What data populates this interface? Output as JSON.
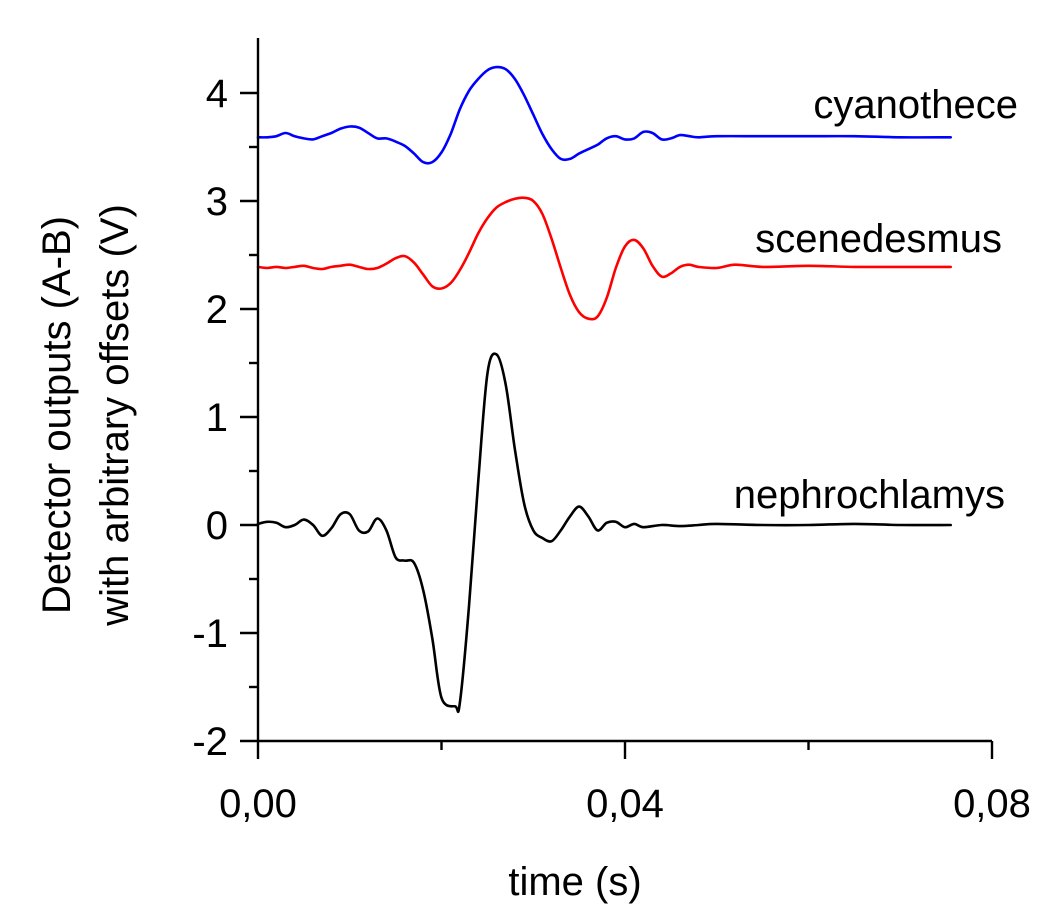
{
  "chart_data": {
    "type": "line",
    "title": "",
    "xlabel": "time (s)",
    "ylabel_lines": [
      "Detector outputs (A-B)",
      "with arbitrary offsets (V)"
    ],
    "xlim": [
      0,
      0.08
    ],
    "ylim": [
      -2,
      4.5
    ],
    "x_ticks": [
      {
        "value": 0.0,
        "label": "0,00"
      },
      {
        "value": 0.04,
        "label": "0,04"
      },
      {
        "value": 0.08,
        "label": "0,08"
      }
    ],
    "x_minor_ticks": [
      0.02,
      0.06
    ],
    "y_ticks": [
      {
        "value": -2,
        "label": "-2"
      },
      {
        "value": -1,
        "label": "-1"
      },
      {
        "value": 0,
        "label": "0"
      },
      {
        "value": 1,
        "label": "1"
      },
      {
        "value": 2,
        "label": "2"
      },
      {
        "value": 3,
        "label": "3"
      },
      {
        "value": 4,
        "label": "4"
      }
    ],
    "y_minor_ticks": [
      -1.5,
      -0.5,
      0.5,
      1.5,
      2.5,
      3.5
    ],
    "grid": false,
    "legend": "labels placed next to each trace",
    "series": [
      {
        "name": "cyanothece",
        "color": "#0000ff",
        "points": [
          [
            0.0,
            3.59
          ],
          [
            0.001,
            3.59
          ],
          [
            0.002,
            3.6
          ],
          [
            0.003,
            3.63
          ],
          [
            0.004,
            3.6
          ],
          [
            0.005,
            3.58
          ],
          [
            0.006,
            3.57
          ],
          [
            0.007,
            3.6
          ],
          [
            0.008,
            3.63
          ],
          [
            0.009,
            3.67
          ],
          [
            0.01,
            3.69
          ],
          [
            0.011,
            3.68
          ],
          [
            0.012,
            3.63
          ],
          [
            0.013,
            3.58
          ],
          [
            0.014,
            3.58
          ],
          [
            0.015,
            3.55
          ],
          [
            0.016,
            3.51
          ],
          [
            0.017,
            3.44
          ],
          [
            0.018,
            3.36
          ],
          [
            0.019,
            3.36
          ],
          [
            0.02,
            3.45
          ],
          [
            0.021,
            3.62
          ],
          [
            0.022,
            3.85
          ],
          [
            0.023,
            4.02
          ],
          [
            0.024,
            4.13
          ],
          [
            0.025,
            4.21
          ],
          [
            0.026,
            4.24
          ],
          [
            0.027,
            4.22
          ],
          [
            0.028,
            4.13
          ],
          [
            0.029,
            3.98
          ],
          [
            0.03,
            3.8
          ],
          [
            0.031,
            3.62
          ],
          [
            0.032,
            3.48
          ],
          [
            0.033,
            3.39
          ],
          [
            0.034,
            3.39
          ],
          [
            0.035,
            3.44
          ],
          [
            0.036,
            3.48
          ],
          [
            0.037,
            3.52
          ],
          [
            0.038,
            3.58
          ],
          [
            0.039,
            3.6
          ],
          [
            0.04,
            3.57
          ],
          [
            0.041,
            3.58
          ],
          [
            0.042,
            3.64
          ],
          [
            0.043,
            3.63
          ],
          [
            0.044,
            3.57
          ],
          [
            0.045,
            3.58
          ],
          [
            0.046,
            3.61
          ],
          [
            0.047,
            3.6
          ],
          [
            0.048,
            3.59
          ],
          [
            0.05,
            3.6
          ],
          [
            0.055,
            3.6
          ],
          [
            0.06,
            3.6
          ],
          [
            0.065,
            3.6
          ],
          [
            0.07,
            3.59
          ],
          [
            0.0755,
            3.59
          ]
        ]
      },
      {
        "name": "scenedesmus",
        "color": "#ff0000",
        "points": [
          [
            0.0,
            2.39
          ],
          [
            0.001,
            2.38
          ],
          [
            0.002,
            2.39
          ],
          [
            0.003,
            2.38
          ],
          [
            0.004,
            2.39
          ],
          [
            0.005,
            2.4
          ],
          [
            0.006,
            2.38
          ],
          [
            0.007,
            2.37
          ],
          [
            0.008,
            2.39
          ],
          [
            0.009,
            2.4
          ],
          [
            0.01,
            2.41
          ],
          [
            0.011,
            2.39
          ],
          [
            0.012,
            2.37
          ],
          [
            0.013,
            2.38
          ],
          [
            0.014,
            2.42
          ],
          [
            0.015,
            2.47
          ],
          [
            0.016,
            2.49
          ],
          [
            0.017,
            2.43
          ],
          [
            0.018,
            2.32
          ],
          [
            0.019,
            2.21
          ],
          [
            0.02,
            2.19
          ],
          [
            0.021,
            2.24
          ],
          [
            0.022,
            2.36
          ],
          [
            0.023,
            2.52
          ],
          [
            0.024,
            2.7
          ],
          [
            0.025,
            2.84
          ],
          [
            0.026,
            2.94
          ],
          [
            0.027,
            2.99
          ],
          [
            0.028,
            3.02
          ],
          [
            0.029,
            3.03
          ],
          [
            0.03,
            3.0
          ],
          [
            0.031,
            2.88
          ],
          [
            0.032,
            2.65
          ],
          [
            0.033,
            2.38
          ],
          [
            0.034,
            2.13
          ],
          [
            0.035,
            1.97
          ],
          [
            0.036,
            1.91
          ],
          [
            0.037,
            1.93
          ],
          [
            0.038,
            2.1
          ],
          [
            0.039,
            2.38
          ],
          [
            0.04,
            2.58
          ],
          [
            0.041,
            2.64
          ],
          [
            0.042,
            2.56
          ],
          [
            0.043,
            2.4
          ],
          [
            0.044,
            2.3
          ],
          [
            0.045,
            2.33
          ],
          [
            0.046,
            2.39
          ],
          [
            0.047,
            2.41
          ],
          [
            0.048,
            2.39
          ],
          [
            0.05,
            2.38
          ],
          [
            0.052,
            2.41
          ],
          [
            0.055,
            2.39
          ],
          [
            0.06,
            2.4
          ],
          [
            0.065,
            2.39
          ],
          [
            0.07,
            2.39
          ],
          [
            0.0755,
            2.39
          ]
        ]
      },
      {
        "name": "nephrochlamys",
        "color": "#000000",
        "points": [
          [
            0.0,
            0.01
          ],
          [
            0.001,
            0.03
          ],
          [
            0.002,
            0.02
          ],
          [
            0.003,
            -0.02
          ],
          [
            0.004,
            0.0
          ],
          [
            0.005,
            0.05
          ],
          [
            0.006,
            0.0
          ],
          [
            0.007,
            -0.1
          ],
          [
            0.008,
            -0.03
          ],
          [
            0.009,
            0.1
          ],
          [
            0.01,
            0.1
          ],
          [
            0.011,
            -0.05
          ],
          [
            0.012,
            -0.06
          ],
          [
            0.013,
            0.06
          ],
          [
            0.014,
            -0.05
          ],
          [
            0.015,
            -0.3
          ],
          [
            0.016,
            -0.33
          ],
          [
            0.017,
            -0.35
          ],
          [
            0.018,
            -0.6
          ],
          [
            0.019,
            -1.05
          ],
          [
            0.02,
            -1.6
          ],
          [
            0.0215,
            -1.68
          ],
          [
            0.022,
            -1.65
          ],
          [
            0.023,
            -0.75
          ],
          [
            0.024,
            0.4
          ],
          [
            0.025,
            1.4
          ],
          [
            0.026,
            1.58
          ],
          [
            0.027,
            1.3
          ],
          [
            0.028,
            0.7
          ],
          [
            0.029,
            0.2
          ],
          [
            0.03,
            -0.05
          ],
          [
            0.031,
            -0.12
          ],
          [
            0.032,
            -0.15
          ],
          [
            0.033,
            -0.05
          ],
          [
            0.034,
            0.08
          ],
          [
            0.035,
            0.17
          ],
          [
            0.036,
            0.08
          ],
          [
            0.037,
            -0.05
          ],
          [
            0.038,
            0.02
          ],
          [
            0.039,
            0.03
          ],
          [
            0.04,
            -0.02
          ],
          [
            0.041,
            0.01
          ],
          [
            0.042,
            -0.02
          ],
          [
            0.044,
            0.0
          ],
          [
            0.046,
            -0.01
          ],
          [
            0.048,
            0.0
          ],
          [
            0.05,
            0.01
          ],
          [
            0.055,
            0.0
          ],
          [
            0.06,
            0.0
          ],
          [
            0.065,
            0.01
          ],
          [
            0.07,
            0.0
          ],
          [
            0.0755,
            0.0
          ]
        ]
      }
    ]
  }
}
